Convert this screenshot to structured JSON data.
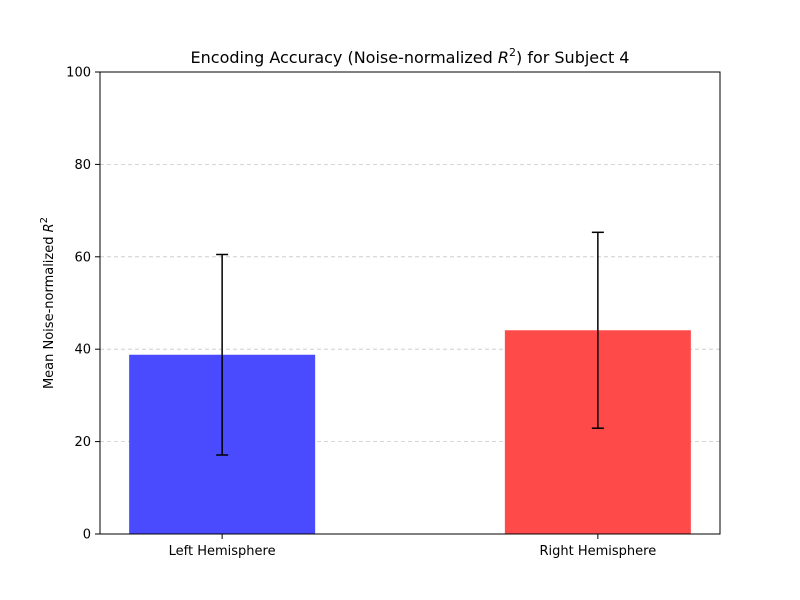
{
  "chart_data": {
    "type": "bar",
    "title": {
      "prefix": "Encoding Accuracy (Noise-normalized ",
      "var": "R",
      "sup": "2",
      "suffix": ") for Subject 4"
    },
    "ylabel": {
      "prefix": "Mean Noise-normalized ",
      "var": "R",
      "sup": "2"
    },
    "xlabel": "",
    "categories": [
      "Left Hemisphere",
      "Right Hemisphere"
    ],
    "values": [
      38.8,
      44.1
    ],
    "errors": [
      21.7,
      21.2
    ],
    "colors": [
      "#4a4aff",
      "#ff4a4a"
    ],
    "ylim": [
      0,
      100
    ],
    "yticks": [
      0,
      20,
      40,
      60,
      80,
      100
    ],
    "grid": "y-dashed",
    "legend": "none"
  }
}
